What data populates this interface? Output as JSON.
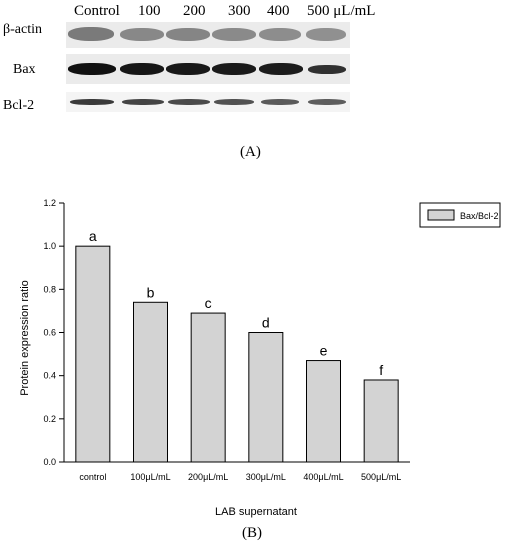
{
  "blot": {
    "lane_headers": [
      "Control",
      "100",
      "200",
      "300",
      "400",
      "500 μL/mL"
    ],
    "row_labels": [
      "β-actin",
      "Bax",
      "Bcl-2"
    ],
    "panel_label": "(A)"
  },
  "panel_b_label": "(B)",
  "chart_data": {
    "type": "bar",
    "categories": [
      "control",
      "100μL/mL",
      "200μL/mL",
      "300μL/mL",
      "400μL/mL",
      "500μL/mL"
    ],
    "series": [
      {
        "name": "Bax/Bcl-2",
        "values": [
          1.0,
          0.74,
          0.69,
          0.6,
          0.47,
          0.38
        ]
      }
    ],
    "significance_letters": [
      "a",
      "b",
      "c",
      "d",
      "e",
      "f"
    ],
    "xlabel": "LAB supernatant",
    "ylabel": "Protein expression ratio",
    "ylim": [
      0,
      1.2
    ],
    "yticks": [
      "0.0",
      "0.2",
      "0.4",
      "0.6",
      "0.8",
      "1.0",
      "1.2"
    ],
    "legend_position": "top-right",
    "grid": false,
    "bar_color": "#d3d3d3"
  }
}
